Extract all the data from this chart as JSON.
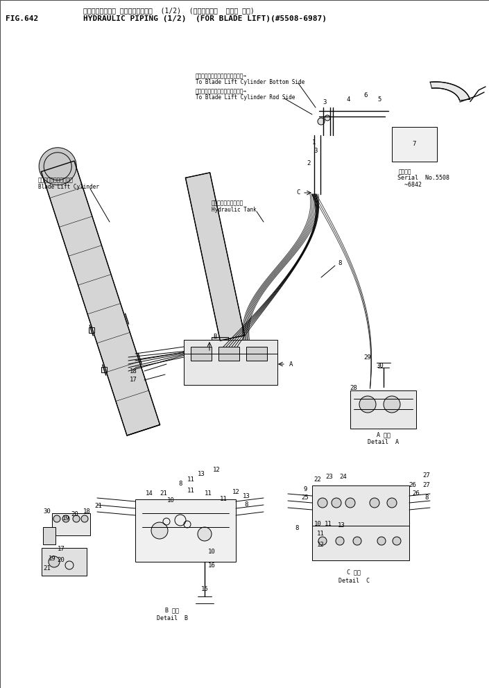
{
  "fig_label": "FIG.642",
  "title_line1": "ハイト゛ロリック ハ゛イヒ゛ンク゛  (1/2)  (フ゛レート゛  リフト ヨツ)",
  "title_line2": "HYDRAULIC PIPING (1/2)  (FOR BLADE LIFT)(#5508-6987)",
  "bg": "#ffffff",
  "fg": "#000000",
  "fig_width": 7.05,
  "fig_height": 9.92,
  "dpi": 100
}
